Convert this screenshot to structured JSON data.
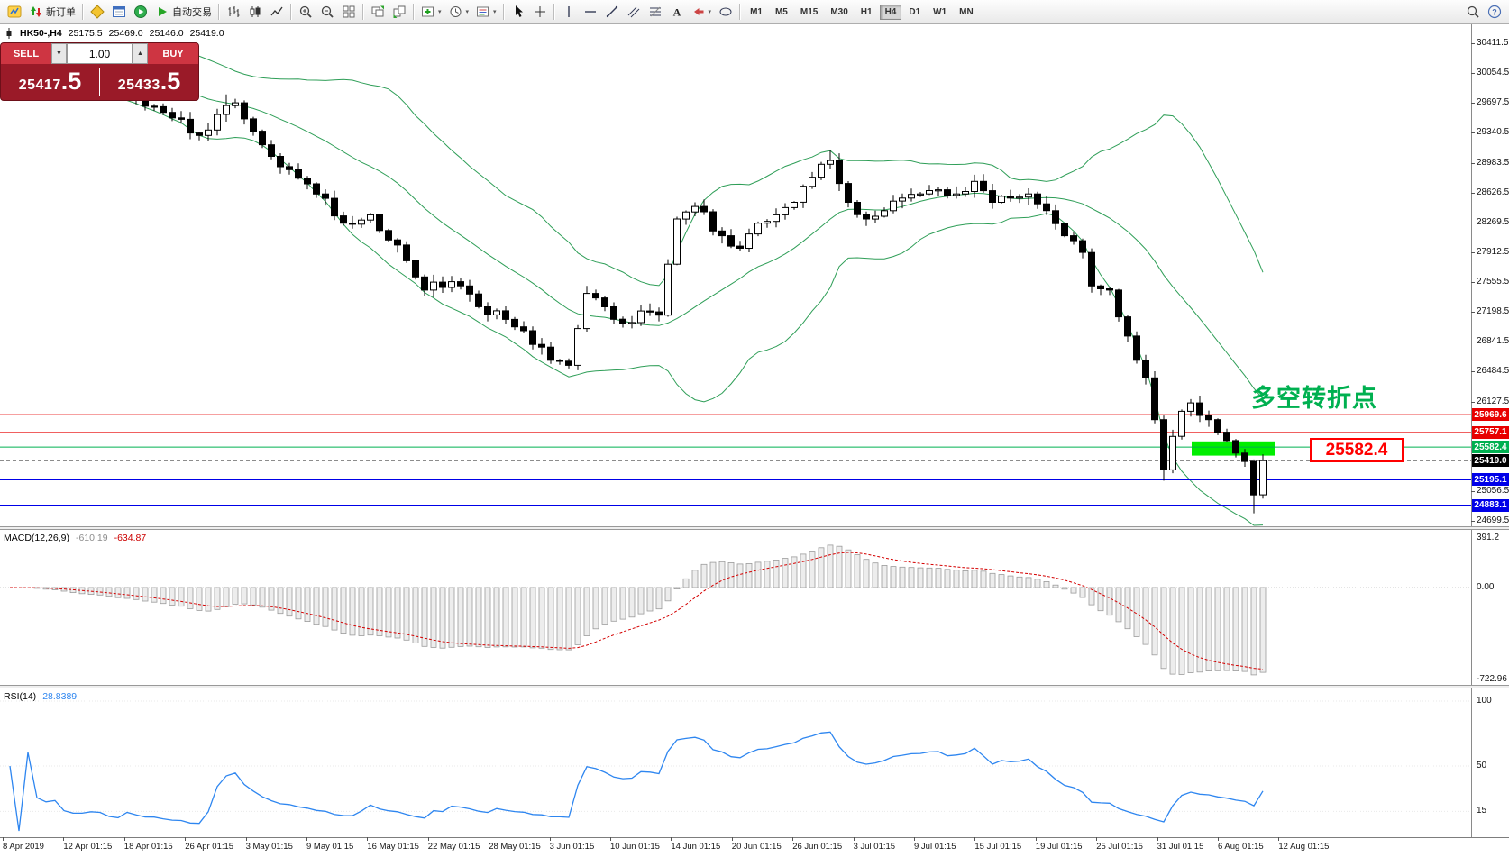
{
  "toolbar": {
    "new_order_label": "新订单",
    "autotrading_label": "自动交易",
    "icons": [
      "app-icon",
      "new-order-icon",
      "market-watch-icon",
      "data-window-icon",
      "navigator-icon",
      "autotrading-icon",
      "bar-chart-icon",
      "candlestick-chart-icon",
      "line-chart-icon",
      "zoom-in-icon",
      "zoom-out-icon",
      "tile-windows-icon",
      "arrange-windows-icon",
      "cascade-windows-icon",
      "indicators-icon",
      "periods-icon",
      "templates-icon",
      "cursor-icon",
      "crosshair-icon",
      "vertical-line-icon",
      "horizontal-line-icon",
      "trendline-icon",
      "channel-icon",
      "fibonacci-icon",
      "text-icon",
      "arrow-label-icon",
      "shapes-icon",
      "search-icon",
      "help-icon"
    ],
    "timeframes": [
      "M1",
      "M5",
      "M15",
      "M30",
      "H1",
      "H4",
      "D1",
      "W1",
      "MN"
    ],
    "active_timeframe": "H4"
  },
  "trade_widget": {
    "sell_label": "SELL",
    "buy_label": "BUY",
    "volume": "1.00",
    "sell_price": "25417",
    "sell_price_big": ".5",
    "buy_price": "25433",
    "buy_price_big": ".5"
  },
  "symbol_info": {
    "symbol_period": "HK50-,H4",
    "open": "25175.5",
    "high": "25469.0",
    "low": "25146.0",
    "close": "25419.0"
  },
  "annotation": {
    "text": "多空转折点",
    "color": "#00b050"
  },
  "callout": {
    "text": "25582.4",
    "color": "#ff0000"
  },
  "highlight_rect": {
    "color": "#00ee00",
    "price_top": 25650,
    "price_bottom": 25480
  },
  "levels": [
    {
      "value": 25969.6,
      "color": "#e80000",
      "width": 1
    },
    {
      "value": 25757.1,
      "color": "#e80000",
      "width": 1
    },
    {
      "value": 25582.4,
      "color": "#00b050",
      "width": 1
    },
    {
      "value": 25195.1,
      "color": "#0000e8",
      "width": 2
    },
    {
      "value": 24883.1,
      "color": "#0000e8",
      "width": 2
    }
  ],
  "price_axis": {
    "min": 24699.5,
    "max": 30380.0,
    "labels": [
      "30411.5",
      "30054.5",
      "29697.5",
      "29340.5",
      "28983.5",
      "28626.5",
      "28269.5",
      "27912.5",
      "27555.5",
      "27198.5",
      "26841.5",
      "26484.5",
      "26127.5",
      "25770.5",
      "25413.5",
      "25056.5",
      "24699.5"
    ],
    "badges": [
      {
        "text": "25969.6",
        "value": 25969.6,
        "bg": "#e80000"
      },
      {
        "text": "25757.1",
        "value": 25757.1,
        "bg": "#e80000"
      },
      {
        "text": "25582.4",
        "value": 25582.4,
        "bg": "#00b050"
      },
      {
        "text": "25419.0",
        "value": 25419.0,
        "bg": "#000000"
      },
      {
        "text": "25195.1",
        "value": 25195.1,
        "bg": "#0000e8"
      },
      {
        "text": "24883.1",
        "value": 24883.1,
        "bg": "#0000e8"
      }
    ]
  },
  "macd_panel": {
    "name": "MACD(12,26,9)",
    "value_main": "-610.19",
    "value_signal": "-634.87",
    "axis": [
      "391.2",
      "0.00",
      "-722.96"
    ],
    "axis_values": [
      391.2,
      0,
      -722.96
    ],
    "histogram_fill": "#ededed",
    "histogram_stroke": "#9b9b9b",
    "signal_color": "#d40000"
  },
  "rsi_panel": {
    "name": "RSI(14)",
    "value": "28.8389",
    "axis": [
      "100",
      "50",
      "15"
    ],
    "axis_values": [
      100,
      50,
      15
    ],
    "line_color": "#2e86f0"
  },
  "time_axis": [
    "8 Apr 2019",
    "12 Apr 01:15",
    "18 Apr 01:15",
    "26 Apr 01:15",
    "3 May 01:15",
    "9 May 01:15",
    "16 May 01:15",
    "22 May 01:15",
    "28 May 01:15",
    "3 Jun 01:15",
    "10 Jun 01:15",
    "14 Jun 01:15",
    "20 Jun 01:15",
    "26 Jun 01:15",
    "3 Jul 01:15",
    "9 Jul 01:15",
    "15 Jul 01:15",
    "19 Jul 01:15",
    "25 Jul 01:15",
    "31 Jul 01:15",
    "6 Aug 01:15",
    "12 Aug 01:15"
  ],
  "chart_data": {
    "type": "candlestick",
    "symbol": "HK50-",
    "timeframe": "H4",
    "visible_range": {
      "price_min": 24699.5,
      "price_max": 30380.0,
      "time_start": "8 Apr 2019",
      "time_end": "13 Aug 2019"
    },
    "last_ohlc": {
      "open": 25175.5,
      "high": 25469.0,
      "low": 25146.0,
      "close": 25419.0
    },
    "bid": 25417.5,
    "ask": 25433.5,
    "levels": [
      25969.6,
      25757.1,
      25582.4,
      25195.1,
      24883.1
    ],
    "indicators": [
      {
        "name": "Bollinger Bands",
        "period": 20,
        "deviation": 2,
        "color": "#2e9e57"
      },
      {
        "name": "MACD",
        "fast": 12,
        "slow": 26,
        "signal": 9,
        "values": [
          -610.19,
          -634.87
        ]
      },
      {
        "name": "RSI",
        "period": 14,
        "value": 28.8389
      }
    ],
    "candle_colors": {
      "up": "#ffffff",
      "down": "#000000",
      "outline": "#000000"
    },
    "candles": {
      "count": 140,
      "close_waypoints": [
        [
          0,
          30150
        ],
        [
          4,
          30050
        ],
        [
          8,
          29920
        ],
        [
          12,
          29780
        ],
        [
          15,
          29660
        ],
        [
          18,
          29520
        ],
        [
          21,
          29310
        ],
        [
          23,
          29560
        ],
        [
          25,
          29700
        ],
        [
          27,
          29360
        ],
        [
          29,
          29060
        ],
        [
          31,
          28900
        ],
        [
          34,
          28610
        ],
        [
          37,
          28260
        ],
        [
          40,
          28360
        ],
        [
          42,
          28060
        ],
        [
          44,
          27810
        ],
        [
          46,
          27460
        ],
        [
          49,
          27560
        ],
        [
          52,
          27260
        ],
        [
          55,
          27110
        ],
        [
          58,
          26810
        ],
        [
          60,
          26620
        ],
        [
          62,
          26560
        ],
        [
          63,
          27000
        ],
        [
          64,
          27420
        ],
        [
          66,
          27260
        ],
        [
          68,
          27060
        ],
        [
          70,
          27210
        ],
        [
          72,
          27160
        ],
        [
          74,
          28310
        ],
        [
          76,
          28460
        ],
        [
          79,
          28110
        ],
        [
          81,
          27960
        ],
        [
          83,
          28260
        ],
        [
          85,
          28360
        ],
        [
          87,
          28510
        ],
        [
          89,
          28810
        ],
        [
          91,
          29010
        ],
        [
          93,
          28510
        ],
        [
          95,
          28310
        ],
        [
          97,
          28410
        ],
        [
          99,
          28560
        ],
        [
          101,
          28610
        ],
        [
          103,
          28660
        ],
        [
          105,
          28610
        ],
        [
          107,
          28760
        ],
        [
          109,
          28510
        ],
        [
          111,
          28560
        ],
        [
          113,
          28610
        ],
        [
          115,
          28410
        ],
        [
          117,
          28110
        ],
        [
          119,
          27910
        ],
        [
          120,
          27510
        ],
        [
          122,
          27460
        ],
        [
          124,
          26910
        ],
        [
          126,
          26410
        ],
        [
          127,
          25910
        ],
        [
          128,
          25310
        ],
        [
          129,
          25710
        ],
        [
          130,
          26010
        ],
        [
          131,
          26110
        ],
        [
          132,
          25960
        ],
        [
          133,
          25910
        ],
        [
          134,
          25760
        ],
        [
          135,
          25660
        ],
        [
          136,
          25510
        ],
        [
          137,
          25410
        ],
        [
          138,
          25010
        ],
        [
          139,
          25419
        ]
      ],
      "extreme_highs": {
        "24": 29800,
        "91": 29130,
        "107": 28840
      },
      "extreme_lows": {
        "128": 25180,
        "138": 24790
      }
    }
  }
}
